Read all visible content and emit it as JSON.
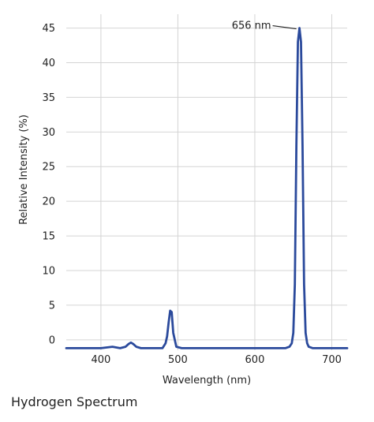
{
  "caption": "Hydrogen Spectrum",
  "chart_data": {
    "type": "line",
    "title": "",
    "xlabel": "Wavelength (nm)",
    "ylabel": "Relative Intensity (%)",
    "xlim": [
      355,
      720
    ],
    "ylim": [
      -1.5,
      47
    ],
    "x_ticks": [
      400,
      500,
      600,
      700
    ],
    "y_ticks": [
      0,
      5,
      10,
      15,
      20,
      25,
      30,
      35,
      40,
      45
    ],
    "grid": true,
    "line_color": "#2b4a9c",
    "annotation": {
      "text": "656 nm",
      "x": 656,
      "y": 45
    },
    "series": [
      {
        "x": [
          355,
          400,
          415,
          425,
          432,
          436,
          439,
          442,
          446,
          452,
          470,
          480,
          484,
          486,
          488,
          490,
          492,
          494,
          498,
          505,
          550,
          600,
          630,
          640,
          645,
          648,
          650,
          652,
          654,
          656,
          658,
          660,
          662,
          664,
          666,
          668,
          670,
          675,
          690,
          720
        ],
        "y": [
          -1.2,
          -1.2,
          -1.0,
          -1.2,
          -1.0,
          -0.6,
          -0.4,
          -0.6,
          -1.0,
          -1.2,
          -1.2,
          -1.2,
          -0.5,
          0.5,
          2.5,
          4.2,
          4.0,
          1.0,
          -1.0,
          -1.2,
          -1.2,
          -1.2,
          -1.2,
          -1.2,
          -1.0,
          -0.5,
          1.0,
          8.0,
          28.0,
          43.0,
          45.0,
          43.0,
          28.0,
          8.0,
          1.0,
          -0.5,
          -1.0,
          -1.2,
          -1.2,
          -1.2
        ]
      }
    ]
  }
}
